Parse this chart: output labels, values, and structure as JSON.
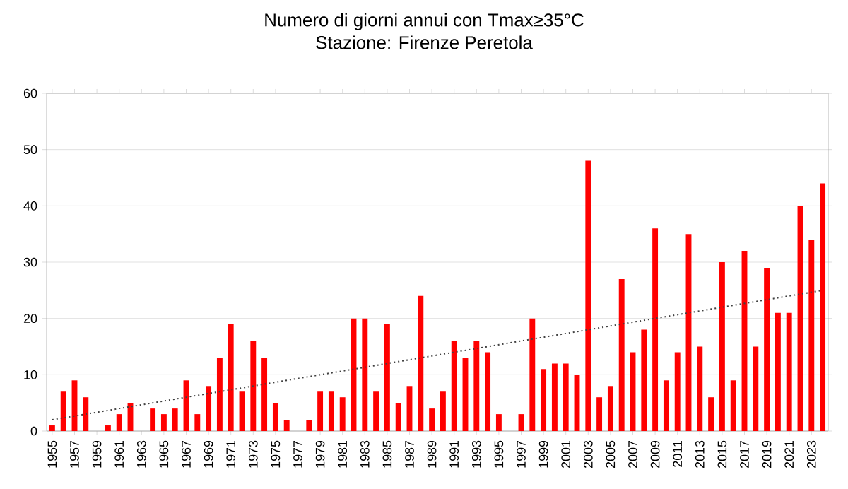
{
  "chart_data": {
    "type": "bar",
    "title": "Numero di giorni annui con Tmax≥35°C",
    "subtitle": "Stazione: Firenze Peretola",
    "x": [
      1955,
      1956,
      1957,
      1958,
      1959,
      1960,
      1961,
      1962,
      1963,
      1964,
      1965,
      1966,
      1967,
      1968,
      1969,
      1970,
      1971,
      1972,
      1973,
      1974,
      1975,
      1976,
      1977,
      1978,
      1979,
      1980,
      1981,
      1982,
      1983,
      1984,
      1985,
      1986,
      1987,
      1988,
      1989,
      1990,
      1991,
      1992,
      1993,
      1994,
      1995,
      1996,
      1997,
      1998,
      1999,
      2000,
      2001,
      2002,
      2003,
      2004,
      2005,
      2006,
      2007,
      2008,
      2009,
      2010,
      2011,
      2012,
      2013,
      2014,
      2015,
      2016,
      2017,
      2018,
      2019,
      2020,
      2021,
      2022,
      2023,
      2024
    ],
    "series": [
      {
        "color": "#ff0000",
        "values": [
          1,
          7,
          9,
          6,
          0,
          1,
          3,
          5,
          0,
          4,
          3,
          4,
          9,
          3,
          8,
          13,
          19,
          7,
          16,
          13,
          5,
          2,
          0,
          2,
          7,
          7,
          6,
          20,
          20,
          7,
          19,
          5,
          8,
          24,
          4,
          7,
          16,
          13,
          16,
          14,
          3,
          0,
          3,
          20,
          11,
          12,
          12,
          10,
          48,
          6,
          8,
          27,
          14,
          18,
          36,
          9,
          14,
          35,
          15,
          6,
          30,
          9,
          32,
          15,
          29,
          21,
          21,
          40,
          34,
          44
        ]
      },
      {
        "type": "line",
        "color": "#404040",
        "line_style": "dotted",
        "x": [
          1955,
          2024
        ],
        "values": [
          2,
          25
        ]
      }
    ],
    "xlim": [
      1954.5,
      2024.5
    ],
    "xticks": [
      1955,
      1957,
      1959,
      1961,
      1963,
      1965,
      1967,
      1969,
      1971,
      1973,
      1975,
      1977,
      1979,
      1981,
      1983,
      1985,
      1987,
      1989,
      1991,
      1993,
      1995,
      1997,
      1999,
      2001,
      2003,
      2005,
      2007,
      2009,
      2011,
      2013,
      2015,
      2017,
      2019,
      2021,
      2023
    ],
    "ylim": [
      0,
      60
    ],
    "yticks": [
      0,
      10,
      20,
      30,
      40,
      50,
      60
    ],
    "grid": "y"
  }
}
